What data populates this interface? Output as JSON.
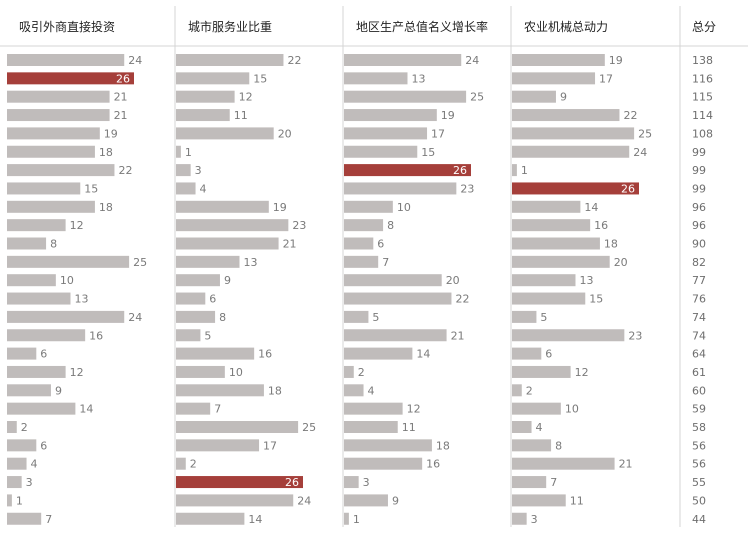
{
  "chart_data": {
    "type": "bar",
    "columns": [
      "吸引外商直接投资",
      "城市服务业比重",
      "地区生产总值名义增长率",
      "农业机械总动力"
    ],
    "total_label": "总分",
    "series": [
      {
        "name": "吸引外商直接投资",
        "values": [
          24,
          26,
          21,
          21,
          19,
          18,
          22,
          15,
          18,
          12,
          8,
          25,
          10,
          13,
          24,
          16,
          6,
          12,
          9,
          14,
          2,
          6,
          4,
          3,
          1,
          7
        ]
      },
      {
        "name": "城市服务业比重",
        "values": [
          22,
          15,
          12,
          11,
          20,
          1,
          3,
          4,
          19,
          23,
          21,
          13,
          9,
          6,
          8,
          5,
          16,
          10,
          18,
          7,
          25,
          17,
          2,
          26,
          24,
          14
        ]
      },
      {
        "name": "地区生产总值名义增长率",
        "values": [
          24,
          13,
          25,
          19,
          17,
          15,
          26,
          23,
          10,
          8,
          6,
          7,
          20,
          22,
          5,
          21,
          14,
          2,
          4,
          12,
          11,
          18,
          16,
          3,
          9,
          1
        ]
      },
      {
        "name": "农业机械总动力",
        "values": [
          19,
          17,
          9,
          22,
          25,
          24,
          1,
          26,
          14,
          16,
          18,
          20,
          13,
          15,
          5,
          23,
          6,
          12,
          2,
          10,
          4,
          8,
          21,
          7,
          11,
          3
        ]
      }
    ],
    "totals": [
      138,
      116,
      115,
      114,
      108,
      99,
      99,
      99,
      96,
      96,
      90,
      82,
      77,
      76,
      74,
      74,
      64,
      61,
      60,
      59,
      58,
      56,
      56,
      55,
      50,
      44
    ],
    "value_range": [
      0,
      26
    ],
    "colors": {
      "bar": "#c0bcbb",
      "highlight": "#a53f3a",
      "divider": "#d4d4d4"
    }
  }
}
